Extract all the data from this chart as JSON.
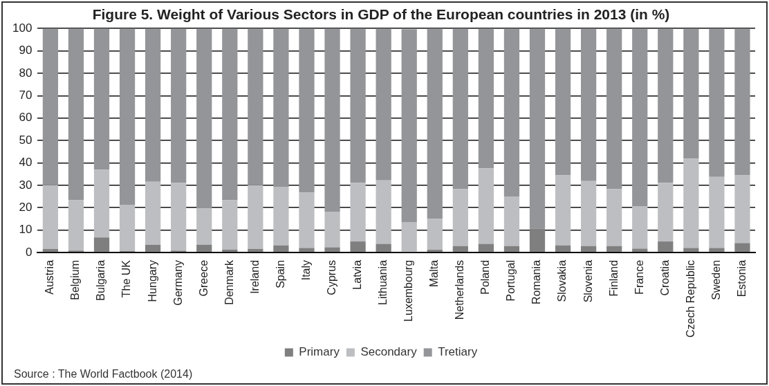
{
  "chart_data": {
    "type": "bar",
    "title": "Figure 5. Weight of Various Sectors in GDP of the European countries in 2013 (in %)",
    "categories": [
      "Austria",
      "Belgium",
      "Bulgaria",
      "The UK",
      "Hungary",
      "Germany",
      "Greece",
      "Denmark",
      "Ireland",
      "Spain",
      "Italy",
      "Cyprus",
      "Latvia",
      "Lithuania",
      "Luxembourg",
      "Malta",
      "Netherlands",
      "Poland",
      "Portugal",
      "Romania",
      "Slovakia",
      "Slovenia",
      "Finland",
      "France",
      "Croatia",
      "Czech Republic",
      "Sweden",
      "Estonia"
    ],
    "stacked": true,
    "series": [
      {
        "name": "Primary",
        "color": "#7f7f80",
        "values": [
          1.5,
          0.8,
          6.7,
          0.6,
          3.4,
          0.8,
          3.4,
          1.3,
          1.6,
          3.1,
          2,
          2.3,
          4.9,
          3.8,
          null,
          1.2,
          2.8,
          3.8,
          2.8,
          10.7,
          3.1,
          2.8,
          2.8,
          1.7,
          4.9,
          2,
          2,
          4.2
        ]
      },
      {
        "name": "Secondary",
        "color": "#bdbec1",
        "values": [
          28.5,
          22.5,
          30.3,
          20.7,
          28.2,
          30.2,
          16.2,
          22.1,
          28.4,
          26.2,
          24.8,
          15.9,
          26.2,
          28.4,
          13.6,
          13.8,
          25.5,
          33.8,
          22.2,
          null,
          31.3,
          29.1,
          25.5,
          19,
          26.2,
          39.9,
          31.7,
          30.2
        ]
      },
      {
        "name": "Tretiary",
        "color": "#939598",
        "values": [
          70,
          76.7,
          63,
          78.7,
          68.4,
          69,
          80.4,
          76.6,
          70,
          70.7,
          73.2,
          81.8,
          68.9,
          67.8,
          86.1,
          85,
          71.7,
          62.4,
          75,
          89.3,
          65.6,
          68.1,
          71.7,
          79.3,
          68.9,
          58.1,
          66.3,
          65.6
        ]
      }
    ],
    "ylim": [
      0,
      100
    ],
    "yticks": [
      0,
      10,
      20,
      30,
      40,
      50,
      60,
      70,
      80,
      90,
      100
    ],
    "grid": "y",
    "legend": "bottom",
    "annotations": [
      "Source : The World Factbook (2014)"
    ]
  }
}
